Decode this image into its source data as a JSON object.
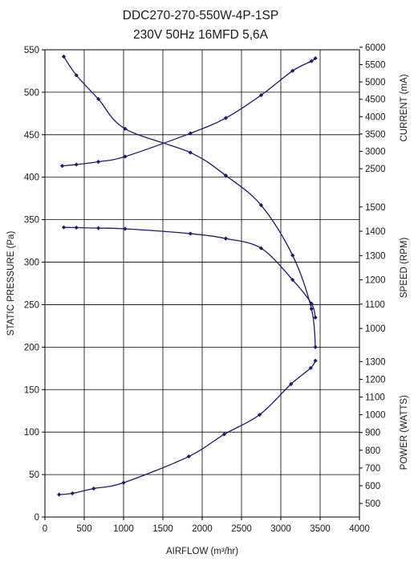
{
  "chart_data": {
    "type": "line",
    "title": "DDC270-270-550W-4P-1SP",
    "subtitle": "230V 50Hz 16MFD 5,6A",
    "xlabel": "AIRFLOW (m³/hr)",
    "ylabel": "STATIC PRESSURE (Pa)",
    "xlim": [
      0,
      4000
    ],
    "xticks": [
      0,
      500,
      1000,
      1500,
      2000,
      2500,
      3000,
      3500,
      4000
    ],
    "ylim": [
      0,
      550
    ],
    "yticks": [
      0,
      50,
      100,
      150,
      200,
      250,
      300,
      350,
      400,
      450,
      500,
      550
    ],
    "grid": true,
    "line_color": "#1a1a6e",
    "right_axes": [
      {
        "label": "CURRENT (mA)",
        "ticks": [
          "2500",
          "3000",
          "3500",
          "4000",
          "4500",
          "5000",
          "5500",
          "6000"
        ],
        "tick_values": [
          2500,
          3000,
          3500,
          4000,
          4500,
          5000,
          5500,
          6000
        ],
        "map_ref": [
          [
            2500,
            410
          ],
          [
            6000,
            553
          ]
        ]
      },
      {
        "label": "SPEED (RPM)",
        "ticks": [
          "1000",
          "1100",
          "1200",
          "1300",
          "1400",
          "1500"
        ],
        "tick_values": [
          1000,
          1100,
          1200,
          1300,
          1400,
          1500
        ],
        "map_ref": [
          [
            1000,
            222
          ],
          [
            1500,
            365
          ]
        ]
      },
      {
        "label": "POWER (WATTS)",
        "ticks": [
          "500",
          "600",
          "700",
          "800",
          "900",
          "1000",
          "1100",
          "1200",
          "1300"
        ],
        "tick_values": [
          500,
          600,
          700,
          800,
          900,
          1000,
          1100,
          1200,
          1300
        ],
        "map_ref": [
          [
            500,
            16
          ],
          [
            1300,
            183
          ]
        ]
      }
    ],
    "series": [
      {
        "axis": "left",
        "x": [
          240,
          400,
          680,
          1020,
          1850,
          2300,
          2750,
          3150,
          3390,
          3440
        ],
        "y": [
          542,
          520,
          492,
          457,
          429,
          402,
          367,
          308,
          245,
          200
        ]
      },
      {
        "axis": "right-0",
        "x": [
          220,
          400,
          680,
          1020,
          1850,
          2300,
          2750,
          3150,
          3390,
          3440
        ],
        "y": [
          2580,
          2620,
          2700,
          2850,
          3520,
          3960,
          4620,
          5320,
          5600,
          5680
        ]
      },
      {
        "axis": "right-1",
        "x": [
          240,
          400,
          680,
          1020,
          1850,
          2300,
          2750,
          3150,
          3390,
          3440
        ],
        "y": [
          1416,
          1415,
          1413,
          1410,
          1390,
          1370,
          1330,
          1200,
          1102,
          1045
        ]
      },
      {
        "axis": "right-2",
        "x": [
          180,
          350,
          620,
          1000,
          1830,
          2280,
          2730,
          3130,
          3380,
          3440
        ],
        "y": [
          550,
          557,
          584,
          617,
          765,
          890,
          1000,
          1173,
          1264,
          1305
        ]
      }
    ]
  }
}
